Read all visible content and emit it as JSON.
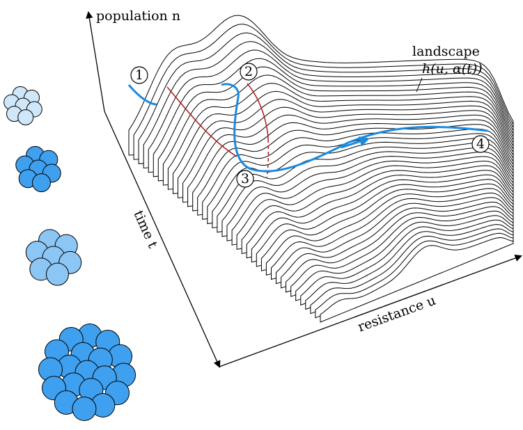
{
  "axes": {
    "vertical": "population n",
    "depth": "time t",
    "horizontal": "resistance u"
  },
  "landscape": {
    "label": "landscape",
    "formula": "h(u, α(t))"
  },
  "markers": [
    "1",
    "2",
    "3",
    "4"
  ]
}
